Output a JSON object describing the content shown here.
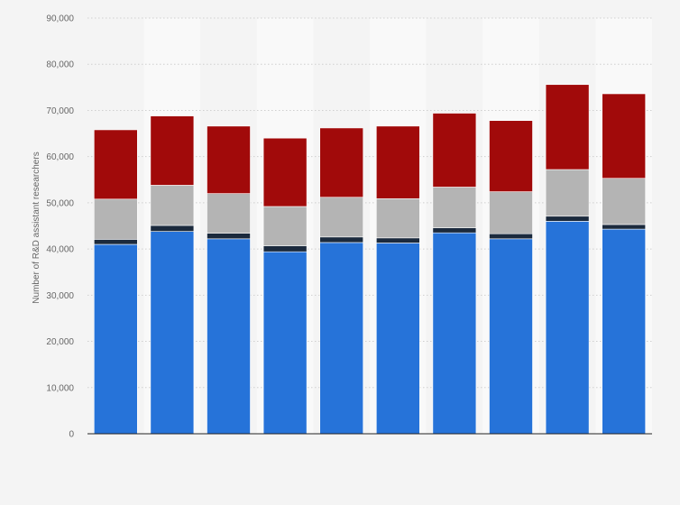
{
  "chart_data": {
    "type": "bar",
    "stacked": true,
    "title": "",
    "xlabel": "",
    "ylabel": "Number of R&D assistant researchers",
    "ylim": [
      0,
      90000
    ],
    "yticks": [
      0,
      10000,
      20000,
      30000,
      40000,
      50000,
      60000,
      70000,
      80000,
      90000
    ],
    "ytick_labels": [
      "0",
      "10,000",
      "20,000",
      "30,000",
      "40,000",
      "50,000",
      "60,000",
      "70,000",
      "80,000",
      "90,000"
    ],
    "grid": true,
    "categories": [
      "",
      "",
      "",
      "",
      "",
      "",
      "",
      "",
      "",
      ""
    ],
    "series": [
      {
        "color": "#2673d9",
        "values": [
          41000,
          43800,
          42200,
          39400,
          41400,
          41300,
          43500,
          42200,
          46000,
          44300
        ]
      },
      {
        "color": "#1b2a3d",
        "values": [
          1100,
          1300,
          1200,
          1300,
          1200,
          1100,
          1100,
          1100,
          1100,
          1000
        ]
      },
      {
        "color": "#b4b4b4",
        "values": [
          8700,
          8700,
          8600,
          8500,
          8600,
          8500,
          8800,
          9100,
          10100,
          10000
        ]
      },
      {
        "color": "#a10a0a",
        "values": [
          15000,
          15000,
          14600,
          14800,
          15000,
          15700,
          16000,
          15400,
          18400,
          18300
        ]
      }
    ]
  }
}
